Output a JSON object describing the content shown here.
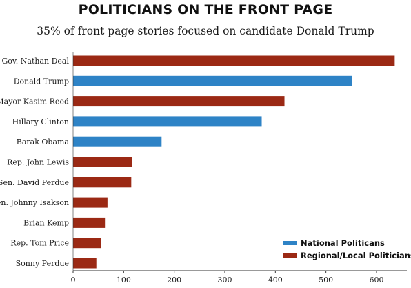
{
  "title": "POLITICIANS ON THE FRONT PAGE",
  "subtitle": "35% of front page stories focused on candidate Donald Trump",
  "colors": {
    "national": "#2e83c6",
    "regional": "#9b2914",
    "axis": "#333333",
    "grid": "#dddddd"
  },
  "chart_data": {
    "type": "bar",
    "orientation": "horizontal",
    "title": "POLITICIANS ON THE FRONT PAGE",
    "subtitle": "35% of front page stories focused on candidate Donald Trump",
    "xlabel": "",
    "ylabel": "",
    "xlim": [
      0,
      650
    ],
    "xticks": [
      0,
      100,
      200,
      300,
      400,
      500,
      600
    ],
    "grid": false,
    "legend_position": "bottom-right",
    "legend": [
      {
        "name": "National Politicans",
        "group": "national"
      },
      {
        "name": "Regional/Local Politicians",
        "group": "regional"
      }
    ],
    "categories": [
      "Gov. Nathan Deal",
      "Donald Trump",
      "Mayor Kasim Reed",
      "Hillary Clinton",
      "Barak Obama",
      "Rep. John Lewis",
      "Sen. David Perdue",
      "Sen. Johnny Isakson",
      "Brian Kemp",
      "Rep. Tom Price",
      "Sonny Perdue"
    ],
    "values": [
      636,
      551,
      418,
      373,
      175,
      117,
      115,
      68,
      63,
      55,
      46
    ],
    "groups": [
      "regional",
      "national",
      "regional",
      "national",
      "national",
      "regional",
      "regional",
      "regional",
      "regional",
      "regional",
      "regional"
    ]
  }
}
